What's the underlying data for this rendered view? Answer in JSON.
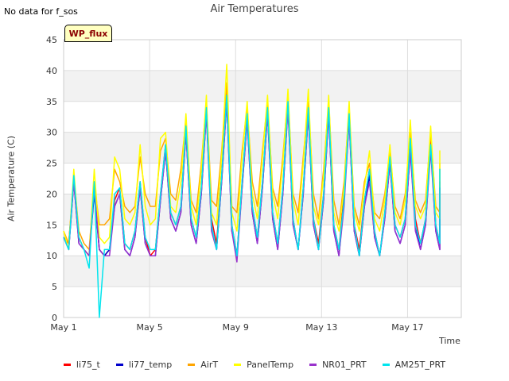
{
  "page": {
    "no_data_text": "No data for f_sos",
    "site_badge": "WP_flux"
  },
  "chart_data": {
    "type": "line",
    "title": "Air Temperatures",
    "xlabel": "Time",
    "ylabel": "Air Temperature (C)",
    "ylim": [
      0,
      45
    ],
    "yticks": [
      0,
      5,
      10,
      15,
      20,
      25,
      30,
      35,
      40,
      45
    ],
    "xlim": [
      1,
      19.5
    ],
    "xticks": [
      {
        "value": 1,
        "label": "May 1"
      },
      {
        "value": 5,
        "label": "May 5"
      },
      {
        "value": 9,
        "label": "May 9"
      },
      {
        "value": 13,
        "label": "May 13"
      },
      {
        "value": 17,
        "label": "May 17"
      }
    ],
    "grid": true,
    "legend_position": "bottom",
    "daily_extremes": {
      "day": [
        1,
        2,
        3,
        4,
        5,
        6,
        7,
        8,
        9,
        10,
        11,
        12,
        13,
        14,
        15,
        16,
        17,
        18,
        19
      ],
      "max": [
        14,
        22,
        22,
        20,
        22,
        27,
        30,
        33,
        35,
        33,
        33,
        35,
        33,
        23,
        25,
        27,
        28,
        23,
        19
      ],
      "min": [
        11,
        10,
        10,
        10,
        10,
        14,
        12,
        10,
        10,
        12,
        12,
        11,
        11,
        10,
        13,
        12,
        11,
        12,
        15
      ]
    },
    "series": [
      {
        "name": "li75_t",
        "color": "#ff0000",
        "values": [
          13,
          12,
          22,
          13,
          11,
          10,
          21,
          11,
          10,
          11,
          19,
          21,
          12,
          11,
          14,
          22,
          13,
          10,
          11,
          20,
          28,
          17,
          15,
          18,
          31,
          16,
          13,
          21,
          34,
          16,
          12,
          23,
          37,
          15,
          10,
          22,
          33,
          18,
          13,
          22,
          34,
          17,
          12,
          21,
          35,
          16,
          11,
          21,
          34,
          16,
          12,
          20,
          34,
          15,
          11,
          20,
          33,
          15,
          11,
          19,
          24,
          14,
          10,
          17,
          26,
          15,
          13,
          16,
          28,
          16,
          12,
          16,
          29,
          15,
          12,
          15,
          22,
          15,
          14
        ]
      },
      {
        "name": "li77_temp",
        "color": "#0000cc",
        "values": [
          13,
          11,
          22,
          12,
          11,
          10,
          20,
          11,
          10,
          11,
          18,
          20,
          11,
          10,
          13,
          21,
          12,
          10,
          10,
          19,
          27,
          16,
          14,
          17,
          30,
          15,
          12,
          20,
          33,
          15,
          11,
          22,
          35,
          14,
          10,
          21,
          32,
          17,
          12,
          21,
          33,
          16,
          11,
          20,
          34,
          15,
          11,
          20,
          33,
          15,
          11,
          19,
          33,
          14,
          10,
          19,
          32,
          14,
          10,
          18,
          23,
          13,
          10,
          16,
          25,
          14,
          12,
          15,
          27,
          15,
          11,
          15,
          28,
          14,
          11,
          14,
          21,
          14,
          14
        ]
      },
      {
        "name": "AirT",
        "color": "#ffa500",
        "values": [
          14,
          12,
          23,
          14,
          12,
          11,
          22,
          15,
          15,
          16,
          24,
          22,
          18,
          17,
          18,
          26,
          20,
          18,
          18,
          27,
          29,
          20,
          19,
          24,
          32,
          19,
          17,
          25,
          35,
          19,
          18,
          27,
          38,
          18,
          17,
          27,
          34,
          22,
          18,
          27,
          35,
          21,
          18,
          26,
          36,
          20,
          17,
          26,
          35,
          20,
          16,
          24,
          35,
          19,
          15,
          22,
          34,
          18,
          15,
          22,
          25,
          17,
          16,
          20,
          27,
          18,
          16,
          20,
          30,
          19,
          17,
          19,
          30,
          18,
          17,
          18,
          25,
          20,
          19
        ]
      },
      {
        "name": "PanelTemp",
        "color": "#ffff00",
        "values": [
          14,
          11,
          24,
          13,
          11,
          10,
          24,
          13,
          12,
          13,
          26,
          24,
          16,
          15,
          17,
          28,
          18,
          15,
          16,
          29,
          30,
          18,
          17,
          22,
          33,
          18,
          15,
          24,
          36,
          17,
          15,
          26,
          41,
          17,
          14,
          26,
          35,
          20,
          16,
          26,
          36,
          20,
          16,
          25,
          37,
          19,
          15,
          25,
          37,
          18,
          15,
          23,
          36,
          17,
          14,
          21,
          35,
          17,
          14,
          21,
          27,
          16,
          14,
          19,
          28,
          17,
          15,
          19,
          32,
          18,
          16,
          18,
          31,
          17,
          16,
          17,
          27,
          19,
          18
        ]
      },
      {
        "name": "NR01_PRT",
        "color": "#9932cc",
        "values": [
          13,
          11,
          22,
          12,
          11,
          10,
          21,
          11,
          10,
          10,
          18,
          20,
          11,
          10,
          13,
          21,
          12,
          10,
          10,
          19,
          27,
          16,
          14,
          17,
          30,
          15,
          12,
          20,
          33,
          14,
          11,
          22,
          35,
          14,
          9,
          21,
          32,
          17,
          12,
          21,
          33,
          16,
          11,
          20,
          34,
          15,
          11,
          20,
          33,
          15,
          11,
          19,
          33,
          14,
          10,
          18,
          32,
          14,
          10,
          18,
          22,
          13,
          10,
          16,
          25,
          14,
          12,
          15,
          27,
          14,
          11,
          15,
          27,
          14,
          11,
          14,
          21,
          14,
          14
        ]
      },
      {
        "name": "AM25T_PRT",
        "color": "#00e5ee",
        "values": [
          13,
          11,
          23,
          13,
          11,
          8,
          22,
          0,
          11,
          11,
          20,
          21,
          12,
          11,
          14,
          22,
          13,
          11,
          11,
          20,
          28,
          17,
          15,
          18,
          31,
          16,
          13,
          21,
          34,
          15,
          11,
          23,
          36,
          15,
          10,
          22,
          33,
          18,
          13,
          22,
          34,
          17,
          12,
          21,
          35,
          16,
          11,
          21,
          34,
          16,
          11,
          20,
          34,
          15,
          11,
          19,
          33,
          15,
          10,
          19,
          24,
          14,
          10,
          17,
          26,
          15,
          13,
          16,
          29,
          15,
          12,
          16,
          28,
          15,
          12,
          15,
          24,
          15,
          14
        ]
      }
    ]
  }
}
